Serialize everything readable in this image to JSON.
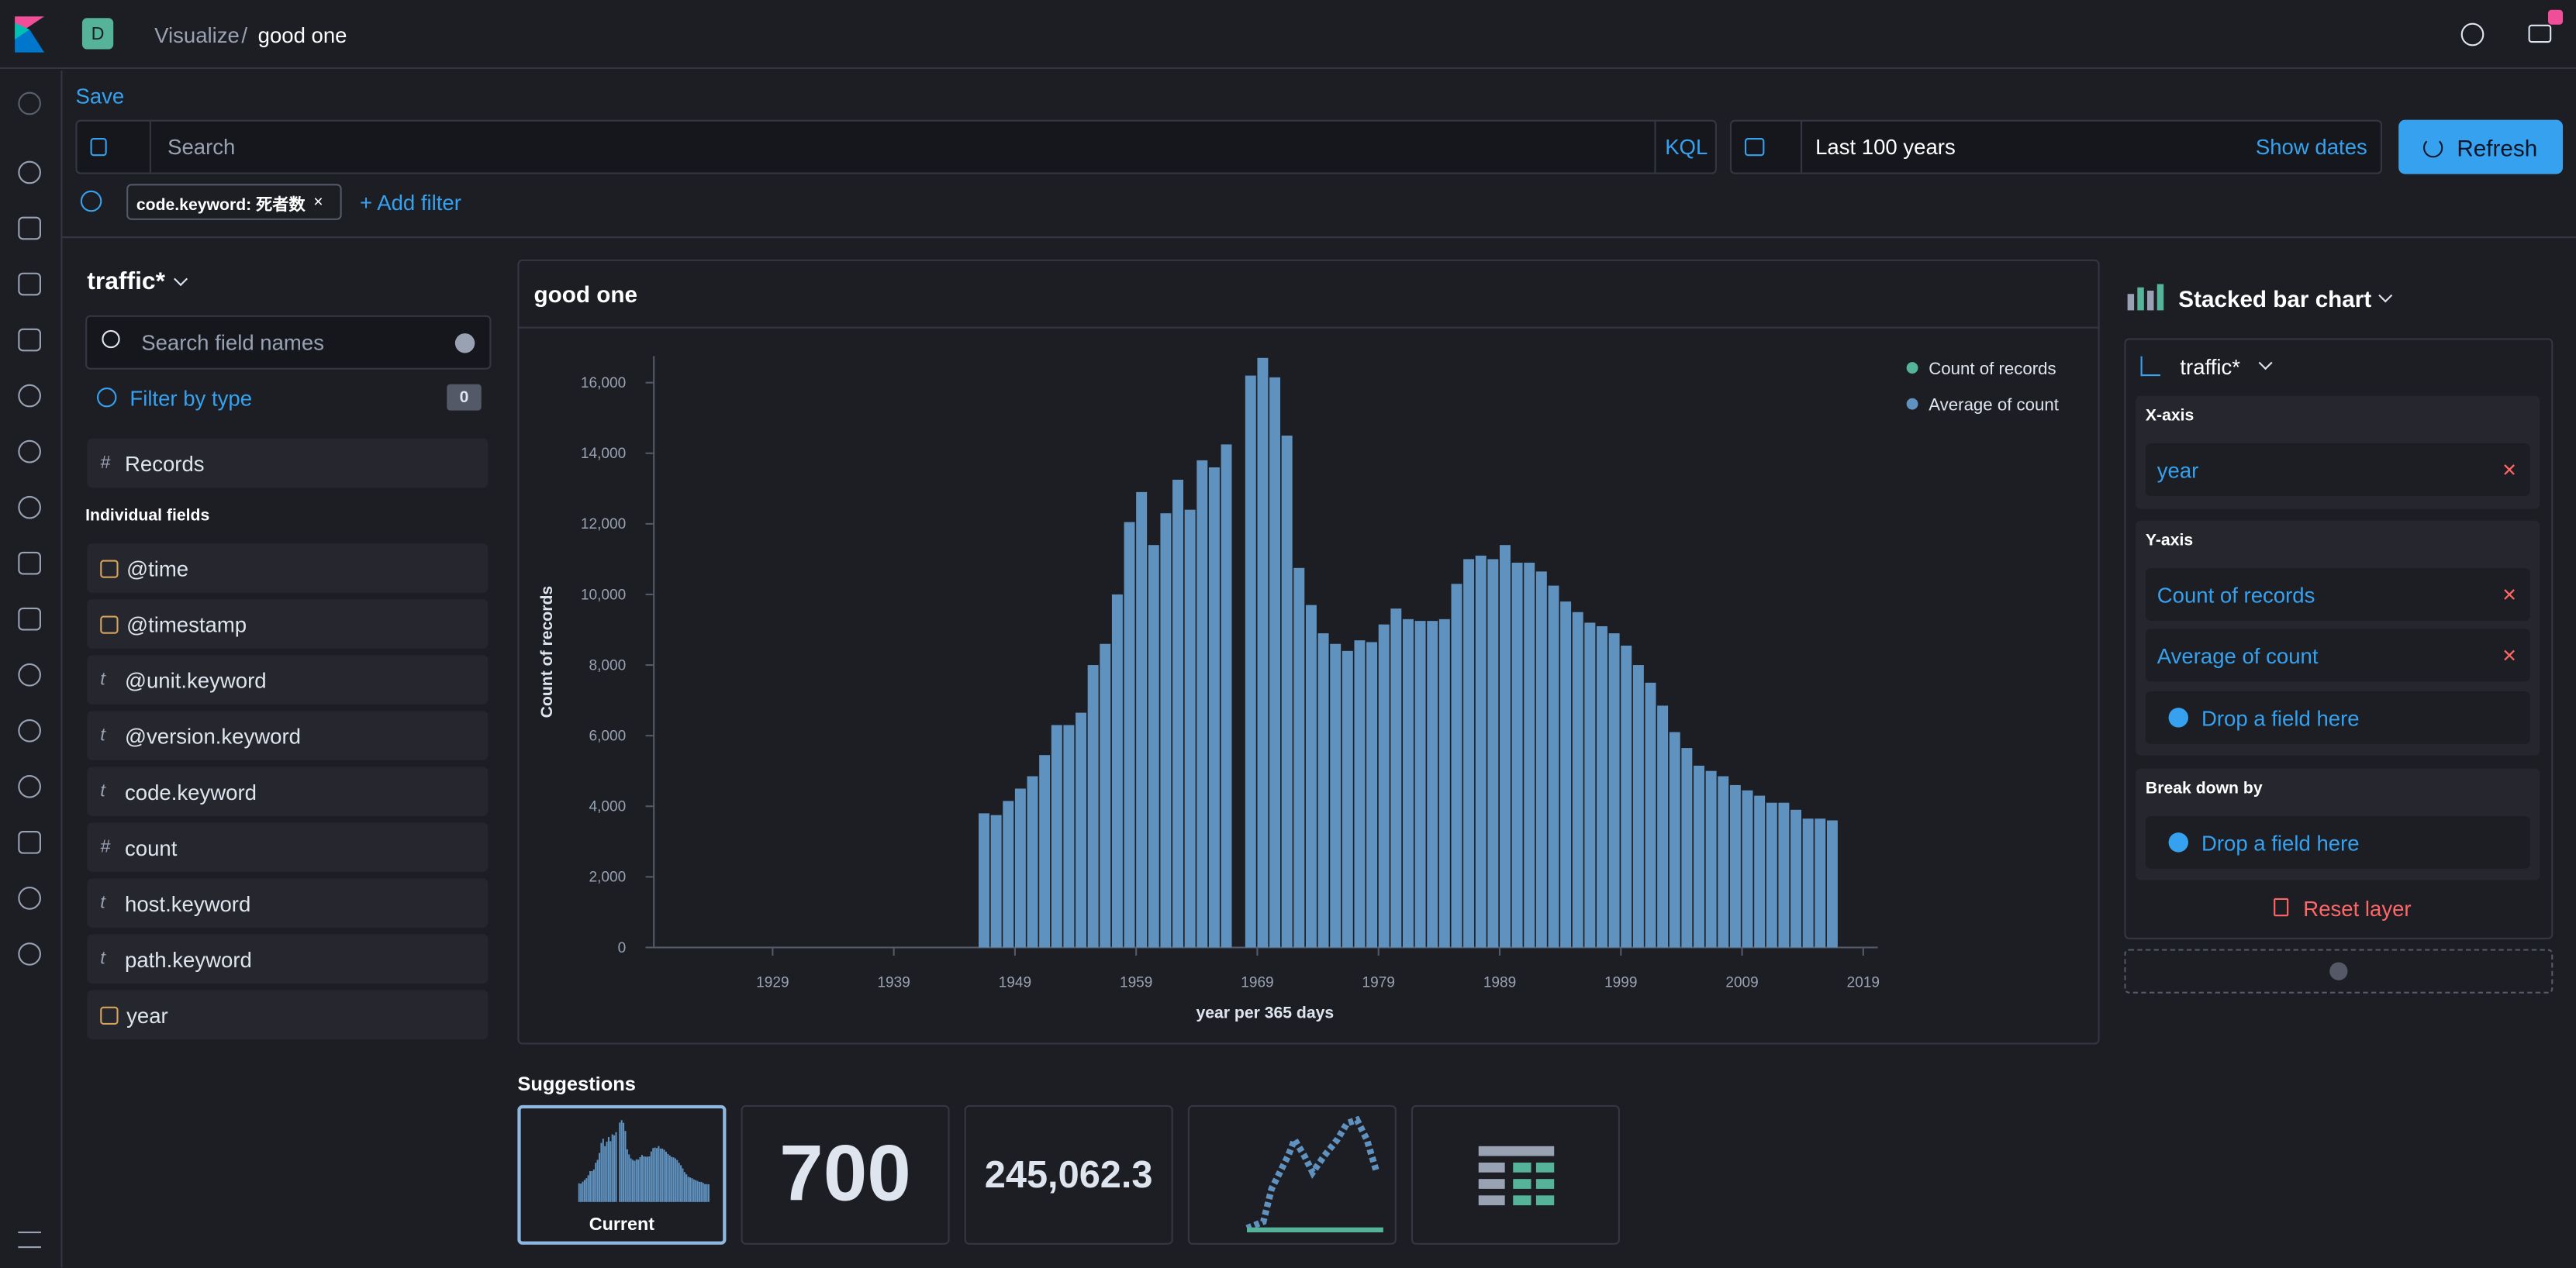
{
  "app": {
    "logo_letter": "D",
    "breadcrumbs": [
      "Visualize",
      "good one"
    ]
  },
  "toolbar": {
    "save": "Save",
    "search_placeholder": "Search",
    "query_language": "KQL",
    "time_range": "Last 100 years",
    "show_dates": "Show dates",
    "refresh": "Refresh",
    "filter": "code.keyword: 死者数",
    "add_filter": "+ Add filter"
  },
  "fields_panel": {
    "index": "traffic*",
    "search_placeholder": "Search field names",
    "filter_by_type": "Filter by type",
    "filter_count": 0,
    "records": {
      "symbol": "#",
      "name": "Records"
    },
    "section": "Individual fields",
    "fields": [
      {
        "name": "@time"
      },
      {
        "name": "@timestamp"
      },
      {
        "symbol": "t",
        "name": "@unit.keyword"
      },
      {
        "symbol": "t",
        "name": "@version.keyword"
      },
      {
        "symbol": "t",
        "name": "code.keyword"
      },
      {
        "symbol": "#",
        "name": "count"
      },
      {
        "symbol": "t",
        "name": "host.keyword"
      },
      {
        "symbol": "t",
        "name": "path.keyword"
      },
      {
        "name": "year"
      }
    ]
  },
  "chart_data": {
    "type": "bar",
    "title": "good one",
    "x_label": "year per 365 days",
    "y_label": "Count of records",
    "color": "#6092c0",
    "legend": [
      {
        "name": "Count of records",
        "color": "#54b399"
      },
      {
        "name": "Average of count",
        "color": "#6092c0"
      }
    ],
    "x": [
      1946,
      1947,
      1948,
      1949,
      1950,
      1951,
      1952,
      1953,
      1954,
      1955,
      1956,
      1957,
      1958,
      1959,
      1960,
      1961,
      1962,
      1963,
      1964,
      1965,
      1966,
      1967,
      1968,
      1969,
      1970,
      1971,
      1972,
      1973,
      1974,
      1975,
      1976,
      1977,
      1978,
      1979,
      1980,
      1981,
      1982,
      1983,
      1984,
      1985,
      1986,
      1987,
      1988,
      1989,
      1990,
      1991,
      1992,
      1993,
      1994,
      1995,
      1996,
      1997,
      1998,
      1999,
      2000,
      2001,
      2002,
      2003,
      2004,
      2005,
      2006,
      2007,
      2008,
      2009,
      2010,
      2011,
      2012,
      2013,
      2014,
      2015,
      2016
    ],
    "values": [
      3800,
      3750,
      4150,
      4500,
      4850,
      5450,
      6300,
      6300,
      6650,
      8000,
      8600,
      10000,
      12050,
      12900,
      11400,
      12300,
      13250,
      12400,
      13800,
      13600,
      14250,
      null,
      16200,
      16700,
      16150,
      14500,
      10750,
      9700,
      8900,
      8600,
      8400,
      8700,
      8650,
      9150,
      9600,
      9300,
      9250,
      9250,
      9300,
      10300,
      11000,
      11100,
      11000,
      11400,
      10900,
      10900,
      10650,
      10250,
      9800,
      9500,
      9200,
      9100,
      8900,
      8550,
      8000,
      7500,
      6850,
      6100,
      5650,
      5150,
      5000,
      4850,
      4600,
      4450,
      4300,
      4100,
      4100,
      3900,
      3650,
      3650,
      3600
    ],
    "xlim": [
      1919.2,
      2020.2
    ],
    "xticks": [
      1929,
      1939,
      1949,
      1959,
      1969,
      1979,
      1989,
      1999,
      2009,
      2019
    ],
    "ylim": [
      0,
      16750
    ],
    "yticks": [
      0,
      {
        "value": 2000,
        "label": "2,000"
      },
      {
        "value": 4000,
        "label": "4,000"
      },
      {
        "value": 6000,
        "label": "6,000"
      },
      {
        "value": 8000,
        "label": "8,000"
      },
      {
        "value": 10000,
        "label": "10,000"
      },
      {
        "value": 12000,
        "label": "12,000"
      },
      {
        "value": 14000,
        "label": "14,000"
      },
      {
        "value": 16000,
        "label": "16,000"
      }
    ],
    "grid": false
  },
  "config_panel": {
    "chart_type": "Stacked bar chart",
    "layer_index": "traffic*",
    "x_axis_label": "X-axis",
    "x_axis_field": "year",
    "y_axis_label": "Y-axis",
    "y_axis_fields": [
      "Count of records",
      "Average of count"
    ],
    "drop_hint": "Drop a field here",
    "breakdown_label": "Break down by",
    "breakdown_drop": "Drop a field here",
    "reset": "Reset layer"
  },
  "suggestions": {
    "title": "Suggestions",
    "current_label": "Current",
    "metric_1": 700,
    "metric_2": "245,062.3"
  }
}
